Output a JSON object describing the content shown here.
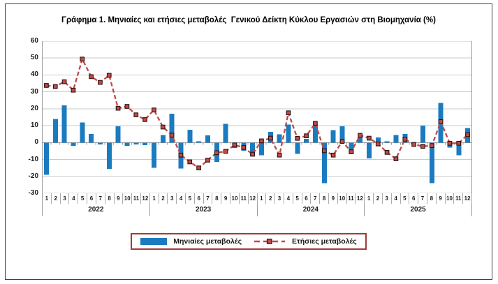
{
  "chart_data": {
    "type": "bar+line",
    "title": "Γράφημα 1. Μηνιαίες και ετήσιες μεταβολές  Γενικού Δείκτη Κύκλου Εργασιών στη Βιομηχανία (%)",
    "ylim": [
      -30,
      60
    ],
    "y_ticks": [
      60,
      50,
      40,
      30,
      20,
      10,
      0,
      -10,
      -20,
      -30
    ],
    "grid": "horizontal",
    "legend_position": "bottom-center",
    "years": [
      "2022",
      "2023",
      "2024",
      "2025"
    ],
    "month_labels": [
      "1",
      "2",
      "3",
      "4",
      "5",
      "6",
      "7",
      "8",
      "9",
      "10",
      "11",
      "12"
    ],
    "series": [
      {
        "name": "Μηνιαίες μεταβολές",
        "type": "bar",
        "color": "#1B7BBF",
        "values": [
          -19,
          14,
          22,
          -2,
          12,
          5,
          -1,
          -15.5,
          9.7,
          -2,
          -1,
          -1.5,
          -15,
          4.5,
          17,
          -15.4,
          7.5,
          0.7,
          4.2,
          -11.5,
          11,
          -3.2,
          -4.8,
          -7.6,
          -7.6,
          6.3,
          4.9,
          10.7,
          -6.7,
          2.1,
          10.7,
          -24,
          7.3,
          9.7,
          -6.8,
          3.4,
          -9.4,
          3.1,
          0.7,
          4.4,
          5,
          -0.5,
          10,
          -24,
          23.5,
          -2.9,
          -7.6,
          8.6
        ]
      },
      {
        "name": "Ετήσιες μεταβολές",
        "type": "line",
        "style": "dashed",
        "marker": "square",
        "color": "#BE4B48",
        "marker_edge": "#2D1212",
        "values": [
          33.8,
          33.2,
          36,
          31,
          49.4,
          39,
          35.6,
          39.8,
          20.3,
          21.4,
          16.4,
          13.6,
          19.3,
          9.2,
          4.4,
          -7.4,
          -11.4,
          -15,
          -10.4,
          -6,
          -5.2,
          -1.4,
          -2.9,
          -6.9,
          1,
          2.6,
          -7.4,
          17.6,
          2.5,
          4,
          11.4,
          -4.8,
          -7.4,
          0.7,
          -5.4,
          4.3,
          2.6,
          -0.8,
          -5.8,
          -9.6,
          2,
          -1.1,
          -2.2,
          -1.8,
          12.4,
          -0.4,
          -0.4,
          4.7
        ]
      }
    ]
  },
  "colors": {
    "gridline": "#CACACA",
    "axis": "#9B9B9B",
    "legend_border": "#A03B38",
    "frame_border": "#404040"
  }
}
